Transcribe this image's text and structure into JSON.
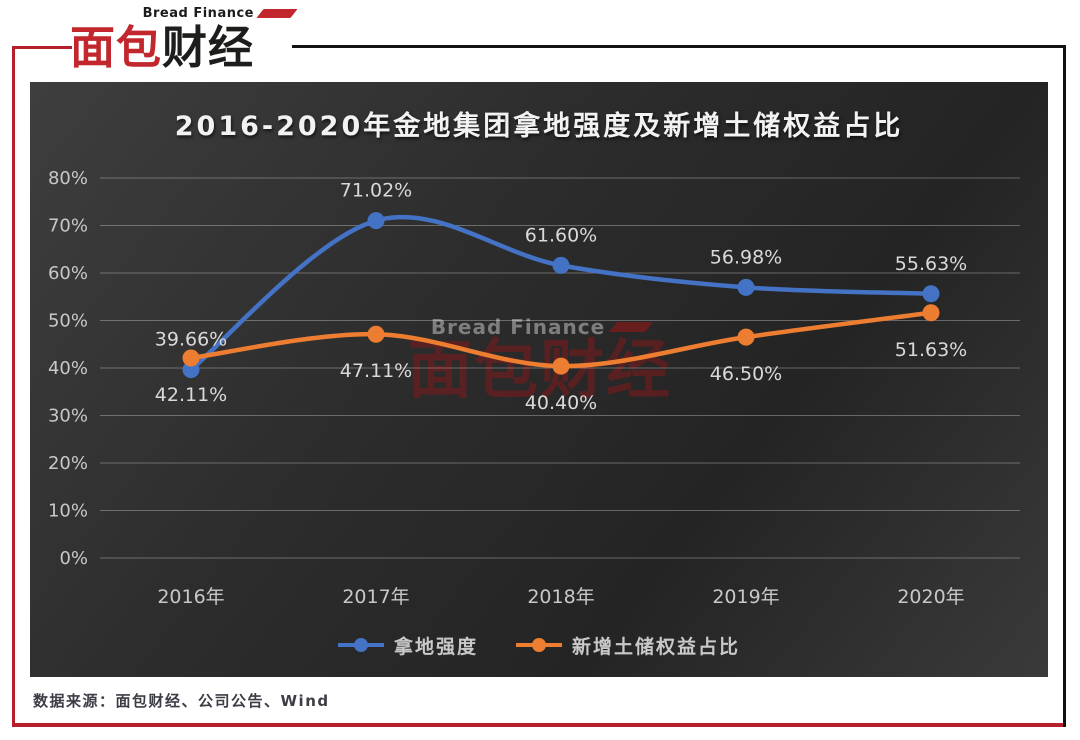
{
  "logo": {
    "subtitle": "Bread Finance",
    "title_red": "面包",
    "title_black": "财经"
  },
  "watermark": {
    "line1": "Bread Finance",
    "line2": "面包财经"
  },
  "chart_data": {
    "type": "line",
    "title": "2016-2020年金地集团拿地强度及新增土储权益占比",
    "categories": [
      "2016年",
      "2017年",
      "2018年",
      "2019年",
      "2020年"
    ],
    "series": [
      {
        "name": "拿地强度",
        "color": "#4472c4",
        "values": [
          39.66,
          71.02,
          61.6,
          56.98,
          55.63
        ],
        "label_position": "above"
      },
      {
        "name": "新增土储权益占比",
        "color": "#ed7d31",
        "values": [
          42.11,
          47.11,
          40.4,
          46.5,
          51.63
        ],
        "label_position": "below"
      }
    ],
    "ylim": [
      0,
      80
    ],
    "ytick_step": 10,
    "ytick_labels": [
      "0%",
      "10%",
      "20%",
      "30%",
      "40%",
      "50%",
      "60%",
      "70%",
      "80%"
    ],
    "grid": true,
    "smooth": true,
    "legend_position": "bottom",
    "data_label_format": "0.00%",
    "style": {
      "background_dark": "#2c2c2c",
      "grid_color": "rgba(255,255,255,0.30)",
      "tick_label_color": "#c8c8c8",
      "data_label_color": "#d9d9d9",
      "title_color": "#f2f2f2"
    }
  },
  "footer": {
    "source": "数据来源：面包财经、公司公告、Wind"
  }
}
